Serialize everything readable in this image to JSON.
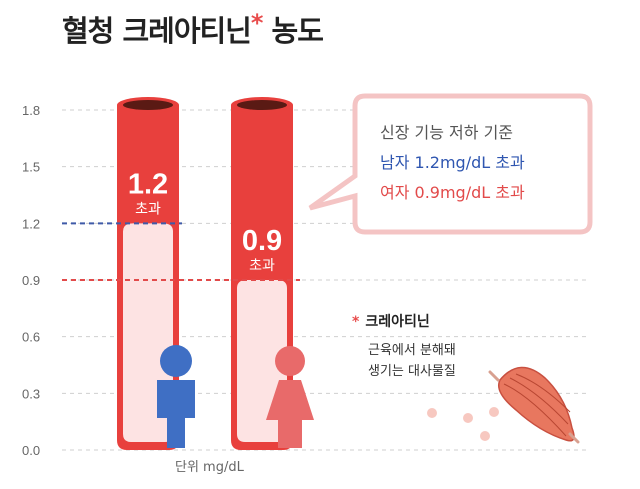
{
  "title": "혈청 크레아티닌",
  "title_mark": "*",
  "title_tail": " 농도",
  "unit_label": "단위 mg/dL",
  "callout": {
    "line1": "신장 기능 저하 기준",
    "line2": "남자 1.2mg/dL 초과",
    "line3": "여자 0.9mg/dL 초과"
  },
  "note": {
    "mark": "*",
    "title": "크레아티닌",
    "line1": "근육에서 분해돼",
    "line2": "생기는 대사물질"
  },
  "colors": {
    "bar": "#e8403d",
    "bar_fill": "#fde3e3",
    "male": "#3f6fc4",
    "female": "#e86a6a",
    "male_threshold": "#3f5aa8",
    "female_threshold": "#e24a4a",
    "callout_border": "#f4c4c4"
  },
  "chart_data": {
    "type": "bar",
    "ylim": [
      0,
      1.8
    ],
    "yticks": [
      "0.0",
      "0.3",
      "0.6",
      "0.9",
      "1.2",
      "1.5",
      "1.8"
    ],
    "grid": true,
    "categories": [
      "남자",
      "여자"
    ],
    "series": [
      {
        "values": [
          1.2,
          0.9
        ],
        "labels": [
          "1.2",
          "0.9"
        ],
        "sublabel": "초과"
      }
    ],
    "thresholds": [
      {
        "value": 1.2,
        "label": "1.2"
      },
      {
        "value": 0.9,
        "label": "0.9"
      }
    ]
  }
}
